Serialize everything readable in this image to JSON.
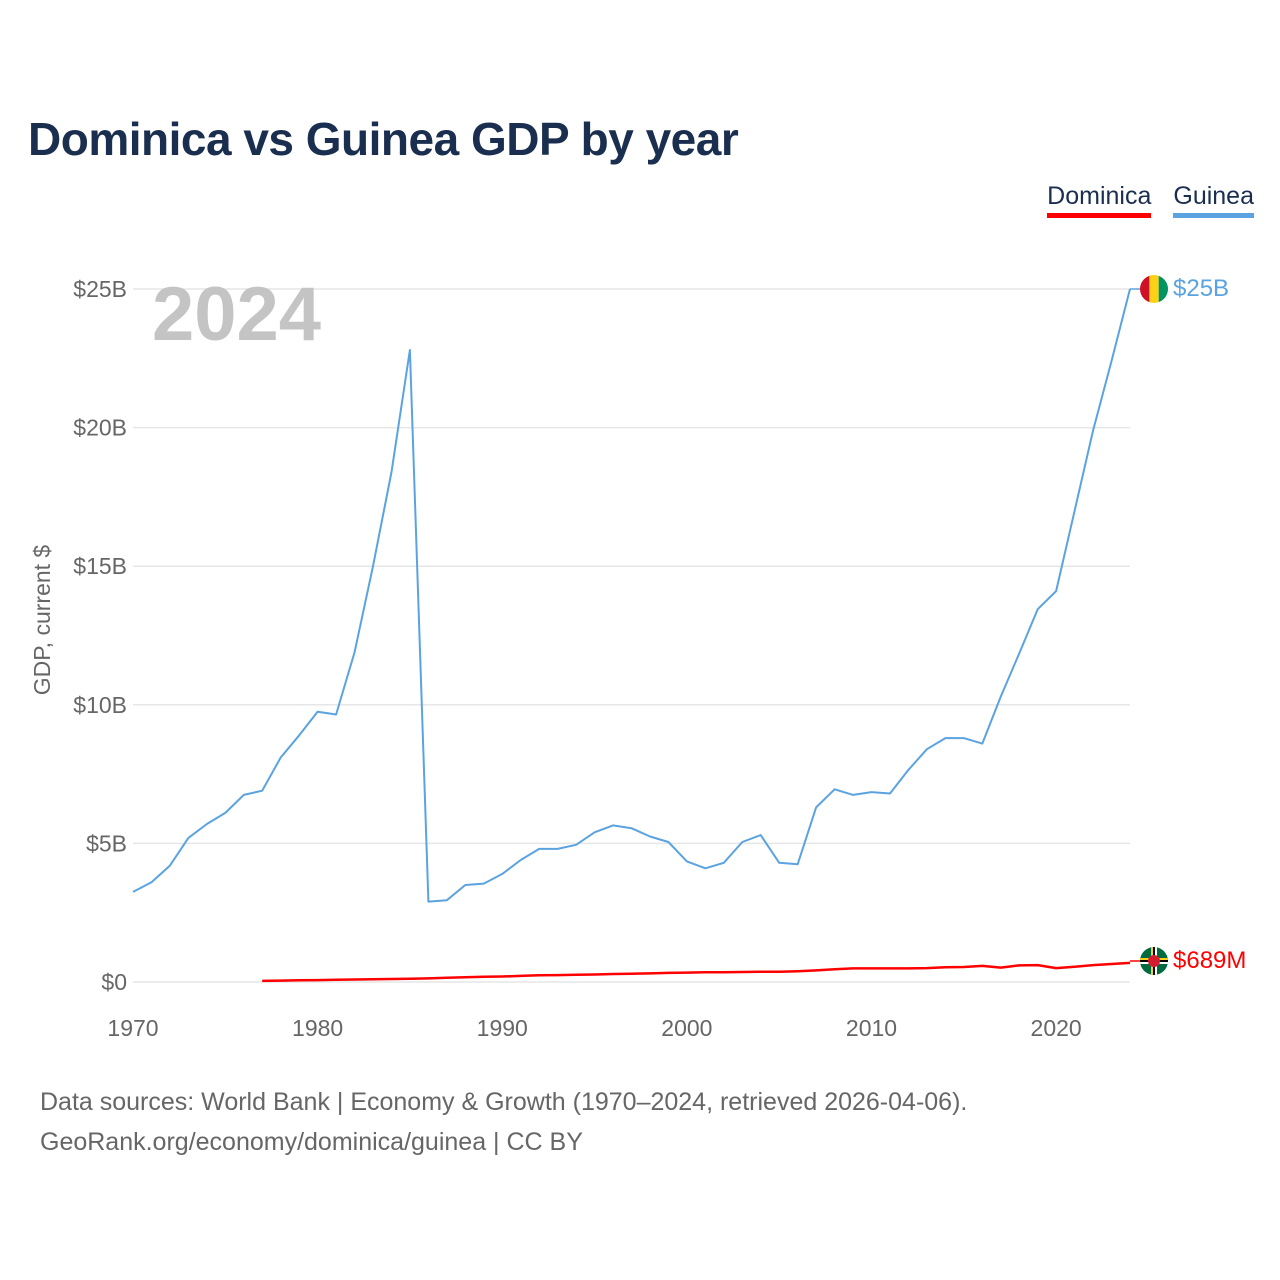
{
  "title": "Dominica vs Guinea GDP by year",
  "legend": [
    {
      "label": "Dominica",
      "color": "#ff0000"
    },
    {
      "label": "Guinea",
      "color": "#5ba3e0"
    }
  ],
  "current_year_label": "2024",
  "end_labels": {
    "guinea": "$25B",
    "dominica": "$689M"
  },
  "sources": {
    "line1": "Data sources: World Bank | Economy & Growth (1970–2024, retrieved 2026-04-06).",
    "line2": "GeoRank.org/economy/dominica/guinea | CC BY"
  },
  "chart_data": {
    "type": "line",
    "title": "Dominica vs Guinea GDP by year",
    "xlabel": "",
    "ylabel": "GDP, current $",
    "xlim": [
      1970,
      2024
    ],
    "ylim": [
      0,
      25
    ],
    "y_unit": "billion USD",
    "x_ticks": [
      1970,
      1980,
      1990,
      2000,
      2010,
      2020
    ],
    "y_ticks": [
      0,
      5,
      10,
      15,
      20,
      25
    ],
    "y_tick_labels": [
      "$0",
      "$5B",
      "$10B",
      "$15B",
      "$20B",
      "$25B"
    ],
    "grid": true,
    "legend_position": "top-right",
    "series": [
      {
        "name": "Guinea",
        "color": "#5ba3e0",
        "x": [
          1970,
          1971,
          1972,
          1973,
          1974,
          1975,
          1976,
          1977,
          1978,
          1979,
          1980,
          1981,
          1982,
          1983,
          1984,
          1985,
          1986,
          1987,
          1988,
          1989,
          1990,
          1991,
          1992,
          1993,
          1994,
          1995,
          1996,
          1997,
          1998,
          1999,
          2000,
          2001,
          2002,
          2003,
          2004,
          2005,
          2006,
          2007,
          2008,
          2009,
          2010,
          2011,
          2012,
          2013,
          2014,
          2015,
          2016,
          2017,
          2018,
          2019,
          2020,
          2021,
          2022,
          2023,
          2024
        ],
        "values": [
          3.25,
          3.6,
          4.2,
          5.2,
          5.7,
          6.1,
          6.75,
          6.9,
          8.1,
          8.9,
          9.75,
          9.65,
          11.9,
          15.0,
          18.4,
          22.8,
          2.9,
          2.95,
          3.5,
          3.55,
          3.9,
          4.4,
          4.8,
          4.8,
          4.95,
          5.4,
          5.65,
          5.55,
          5.25,
          5.05,
          4.35,
          4.1,
          4.3,
          5.05,
          5.3,
          4.3,
          4.25,
          6.3,
          6.95,
          6.75,
          6.85,
          6.8,
          7.65,
          8.4,
          8.8,
          8.8,
          8.6,
          10.3,
          11.85,
          13.45,
          14.1,
          17.0,
          19.9,
          22.4,
          25.0
        ]
      },
      {
        "name": "Dominica",
        "color": "#ff0000",
        "x": [
          1977,
          1978,
          1979,
          1980,
          1981,
          1982,
          1983,
          1984,
          1985,
          1986,
          1987,
          1988,
          1989,
          1990,
          1991,
          1992,
          1993,
          1994,
          1995,
          1996,
          1997,
          1998,
          1999,
          2000,
          2001,
          2002,
          2003,
          2004,
          2005,
          2006,
          2007,
          2008,
          2009,
          2010,
          2011,
          2012,
          2013,
          2014,
          2015,
          2016,
          2017,
          2018,
          2019,
          2020,
          2021,
          2022,
          2023,
          2024
        ],
        "values": [
          0.04,
          0.05,
          0.06,
          0.07,
          0.08,
          0.09,
          0.1,
          0.11,
          0.12,
          0.13,
          0.15,
          0.17,
          0.19,
          0.2,
          0.22,
          0.24,
          0.25,
          0.26,
          0.27,
          0.29,
          0.3,
          0.31,
          0.33,
          0.34,
          0.35,
          0.35,
          0.36,
          0.37,
          0.37,
          0.39,
          0.42,
          0.46,
          0.49,
          0.49,
          0.49,
          0.49,
          0.5,
          0.53,
          0.54,
          0.58,
          0.52,
          0.6,
          0.61,
          0.5,
          0.55,
          0.61,
          0.65,
          0.689
        ]
      }
    ]
  }
}
